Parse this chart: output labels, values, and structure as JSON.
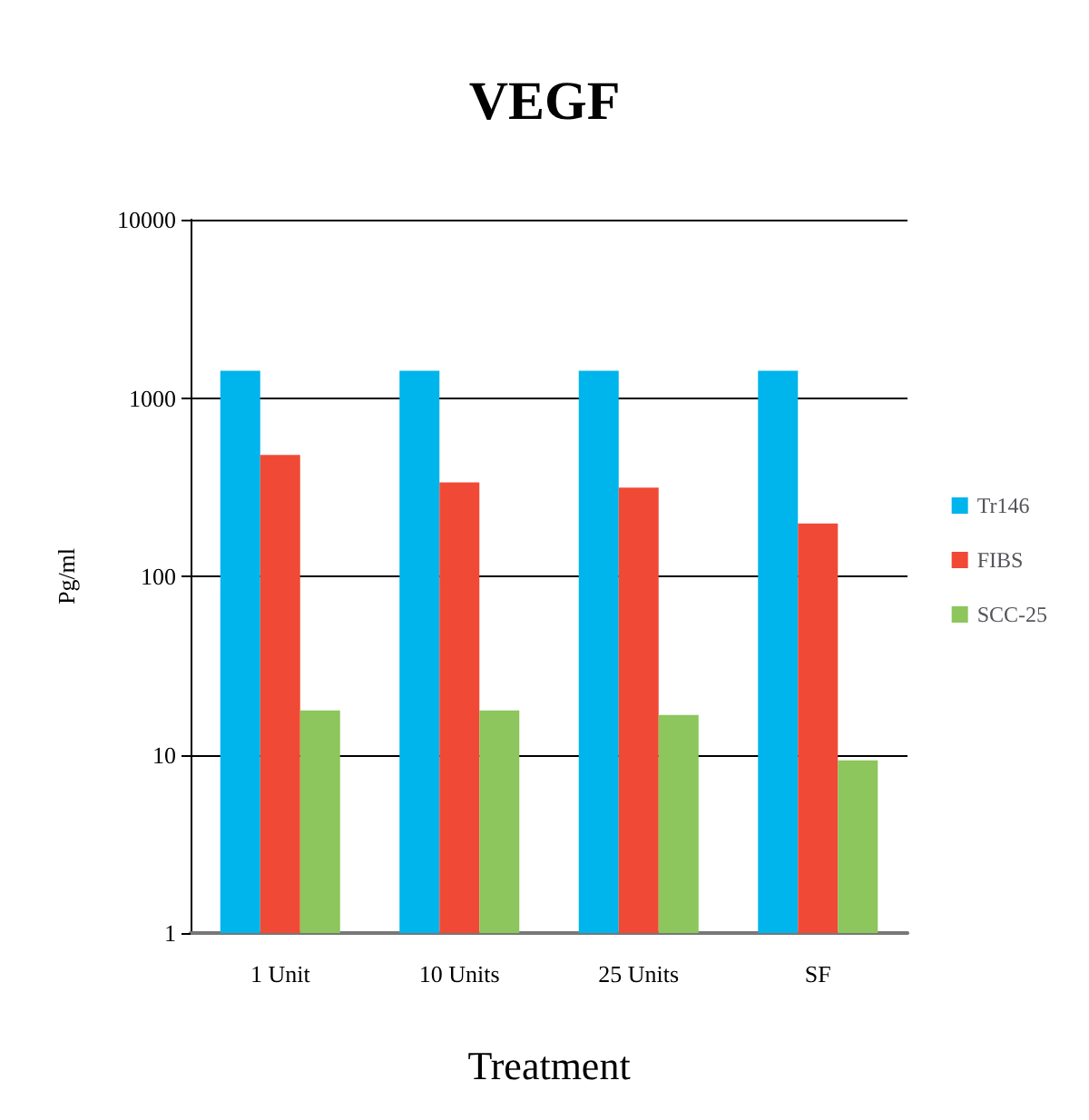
{
  "chart_data": {
    "type": "bar",
    "title": "VEGF",
    "xlabel": "Treatment",
    "ylabel": "Pg/ml",
    "categories": [
      "1 Unit",
      "10 Units",
      "25 Units",
      "SF"
    ],
    "series": [
      {
        "name": "Tr146",
        "color": "#00b4ec",
        "values": [
          1420,
          1420,
          1420,
          1420
        ]
      },
      {
        "name": "FIBS",
        "color": "#f04a36",
        "values": [
          480,
          336,
          314,
          198
        ]
      },
      {
        "name": "SCC-25",
        "color": "#8cc65c",
        "values": [
          17.7,
          17.7,
          16.7,
          9.3
        ]
      }
    ],
    "log": "y",
    "ylim": [
      1,
      10000
    ],
    "yticks": [
      1,
      10,
      100,
      1000,
      10000
    ],
    "grid": "y",
    "legend": "right"
  }
}
